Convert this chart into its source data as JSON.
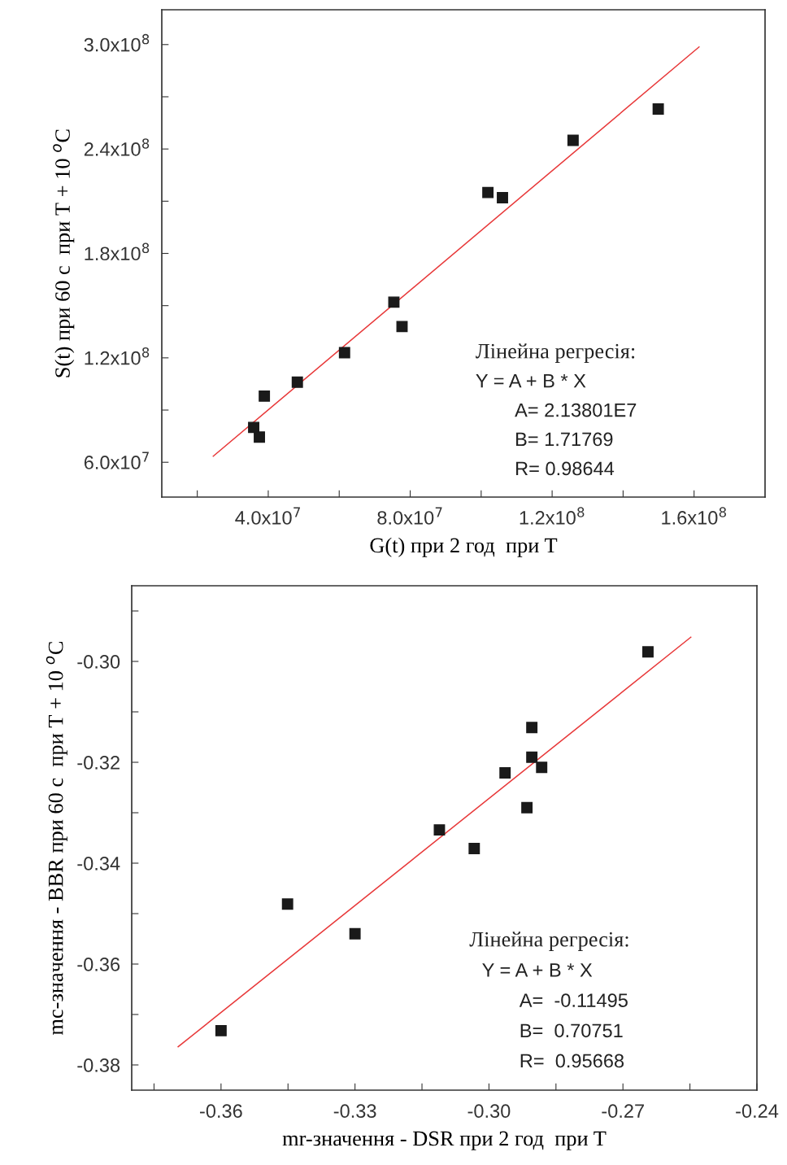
{
  "chart_data": [
    {
      "type": "scatter",
      "xlabel": "G(t) при 2 год  при T",
      "ylabel": "S(t) при 60 с  при T + 10 $^{o}$C",
      "xlim": [
        10000000.0,
        180000000.0
      ],
      "ylim": [
        40000000.0,
        320000000.0
      ],
      "xticks": [
        {
          "value": 20000000.0,
          "label": null
        },
        {
          "value": 40000000.0,
          "label": "4.0x10$^{7}$"
        },
        {
          "value": 60000000.0,
          "label": null
        },
        {
          "value": 80000000.0,
          "label": "8.0x10$^{7}$"
        },
        {
          "value": 100000000.0,
          "label": null
        },
        {
          "value": 120000000.0,
          "label": "1.2x10$^{8}$"
        },
        {
          "value": 140000000.0,
          "label": null
        },
        {
          "value": 160000000.0,
          "label": "1.6x10$^{8}$"
        }
      ],
      "yticks": [
        {
          "value": 60000000.0,
          "label": "6.0x10$^{7}$"
        },
        {
          "value": 90000000.0,
          "label": null
        },
        {
          "value": 120000000.0,
          "label": "1.2x10$^{8}$"
        },
        {
          "value": 150000000.0,
          "label": null
        },
        {
          "value": 180000000.0,
          "label": "1.8x10$^{8}$"
        },
        {
          "value": 210000000.0,
          "label": null
        },
        {
          "value": 240000000.0,
          "label": "2.4x10$^{8}$"
        },
        {
          "value": 270000000.0,
          "label": null
        },
        {
          "value": 300000000.0,
          "label": "3.0x10$^{8}$"
        }
      ],
      "marker": "square",
      "series": [
        {
          "color": "#1a1a1a",
          "x": [
            35900000.0,
            37500000.0,
            38900000.0,
            48200000.0,
            61500000.0,
            75400000.0,
            77700000.0,
            101900000.0,
            106000000.0,
            125900000.0,
            149900000.0
          ],
          "values": [
            80000000.0,
            74500000.0,
            98000000.0,
            106000000.0,
            123000000.0,
            152000000.0,
            138000000.0,
            215000000.0,
            212000000.0,
            245000000.0,
            263000000.0
          ]
        },
        {
          "type": "line",
          "color": "#e8393a",
          "marker": "none",
          "x": [
            24500000.0,
            161400000.0
          ],
          "values": [
            63500000.0,
            298600000.0
          ]
        }
      ],
      "annotations": [
        "Лінейна регресія:",
        "Y = A + B * X",
        "A= 2.13801E7",
        "B= 1.71769",
        "R= 0.98644"
      ]
    },
    {
      "type": "scatter",
      "xlabel": "mr-значення - DSR при 2 год  при T",
      "ylabel": "mc-значення - BBR при 60 с  при T + 10 $^{o}$C",
      "xlim": [
        -0.38,
        -0.24
      ],
      "ylim": [
        -0.385,
        -0.285
      ],
      "xticks": [
        {
          "value": -0.375,
          "label": null
        },
        {
          "value": -0.36,
          "label": "-0.36"
        },
        {
          "value": -0.345,
          "label": null
        },
        {
          "value": -0.33,
          "label": "-0.33"
        },
        {
          "value": -0.315,
          "label": null
        },
        {
          "value": -0.3,
          "label": "-0.30"
        },
        {
          "value": -0.285,
          "label": null
        },
        {
          "value": -0.27,
          "label": "-0.27"
        },
        {
          "value": -0.255,
          "label": null
        },
        {
          "value": -0.24,
          "label": "-0.24"
        }
      ],
      "yticks": [
        {
          "value": -0.38,
          "label": "-0.38"
        },
        {
          "value": -0.37,
          "label": null
        },
        {
          "value": -0.36,
          "label": "-0.36"
        },
        {
          "value": -0.35,
          "label": null
        },
        {
          "value": -0.34,
          "label": "-0.34"
        },
        {
          "value": -0.33,
          "label": null
        },
        {
          "value": -0.32,
          "label": "-0.32"
        },
        {
          "value": -0.31,
          "label": null
        },
        {
          "value": -0.3,
          "label": "-0.30"
        },
        {
          "value": -0.29,
          "label": null
        }
      ],
      "marker": "square",
      "series": [
        {
          "color": "#1a1a1a",
          "x": [
            -0.36,
            -0.3451,
            -0.33,
            -0.3111,
            -0.3033,
            -0.2964,
            -0.2915,
            -0.2904,
            -0.2904,
            -0.2882,
            -0.2644
          ],
          "values": [
            -0.3732,
            -0.3481,
            -0.354,
            -0.3334,
            -0.3371,
            -0.3221,
            -0.329,
            -0.3131,
            -0.319,
            -0.321,
            -0.2981
          ]
        },
        {
          "type": "line",
          "color": "#e8393a",
          "marker": "none",
          "x": [
            -0.3696,
            -0.2548
          ],
          "values": [
            -0.3764,
            -0.2952
          ]
        }
      ],
      "annotations": [
        "Лінейна регресія:",
        "Y = A + B * X",
        "A=  -0.11495",
        "B=  0.70751",
        "R=  0.95668"
      ]
    }
  ]
}
